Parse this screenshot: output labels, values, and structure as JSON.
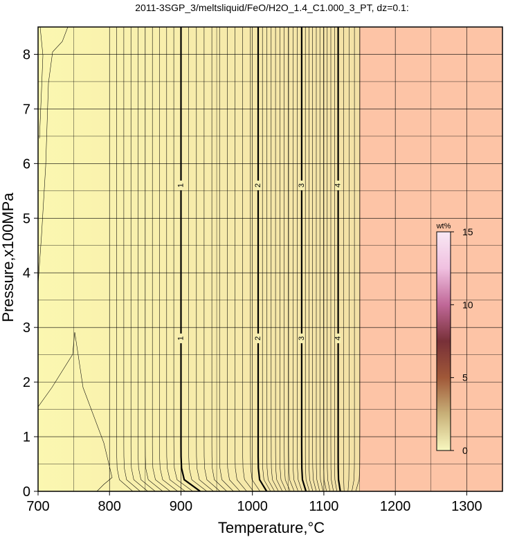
{
  "chart_data": {
    "type": "heatmap",
    "title": "2011-3SGP_3/meltsliquid/FeO/H2O_1.4_C1.000_3_PT, dz=0.1:",
    "xlabel": "Temperature,°C",
    "ylabel": "Pressure,x100MPa",
    "xlim": [
      700,
      1350
    ],
    "ylim": [
      0,
      8.5
    ],
    "x_ticks": [
      700,
      800,
      900,
      1000,
      1100,
      1200,
      1300
    ],
    "y_ticks": [
      0,
      1,
      2,
      3,
      4,
      5,
      6,
      7,
      8
    ],
    "x_tick_labels": [
      "700",
      "800",
      "900",
      "1000",
      "1100",
      "1200",
      "1300"
    ],
    "y_tick_labels": [
      "0",
      "1",
      "2",
      "3",
      "4",
      "5",
      "6",
      "7",
      "8"
    ],
    "grid": true,
    "colorbar": {
      "title": "wt%",
      "range": [
        0,
        15
      ],
      "ticks": [
        0,
        5,
        10,
        15
      ],
      "tick_labels": [
        "0",
        "5",
        "10",
        "15"
      ],
      "colors": [
        "#f8f8c0",
        "#c8b078",
        "#a05838",
        "#783038",
        "#c06898",
        "#f0c0e0",
        "#f8e8f4"
      ]
    },
    "background_colors": {
      "low_temperature": "#fbf7b0",
      "high_temperature": "#fdc4a6"
    },
    "liquidus_temperature": 1150,
    "major_contours": [
      {
        "value": 1,
        "label": "1",
        "temperature_high_p": 900,
        "temperature_low_p": 927
      },
      {
        "value": 2,
        "label": "2",
        "temperature_high_p": 1008,
        "temperature_low_p": 1020
      },
      {
        "value": 3,
        "label": "3",
        "temperature_high_p": 1069,
        "temperature_low_p": 1075
      },
      {
        "value": 4,
        "label": "4",
        "temperature_high_p": 1120,
        "temperature_low_p": 1123
      }
    ],
    "contour_interval": 0.1,
    "contour_label_pressures": [
      2.8,
      5.6
    ]
  }
}
